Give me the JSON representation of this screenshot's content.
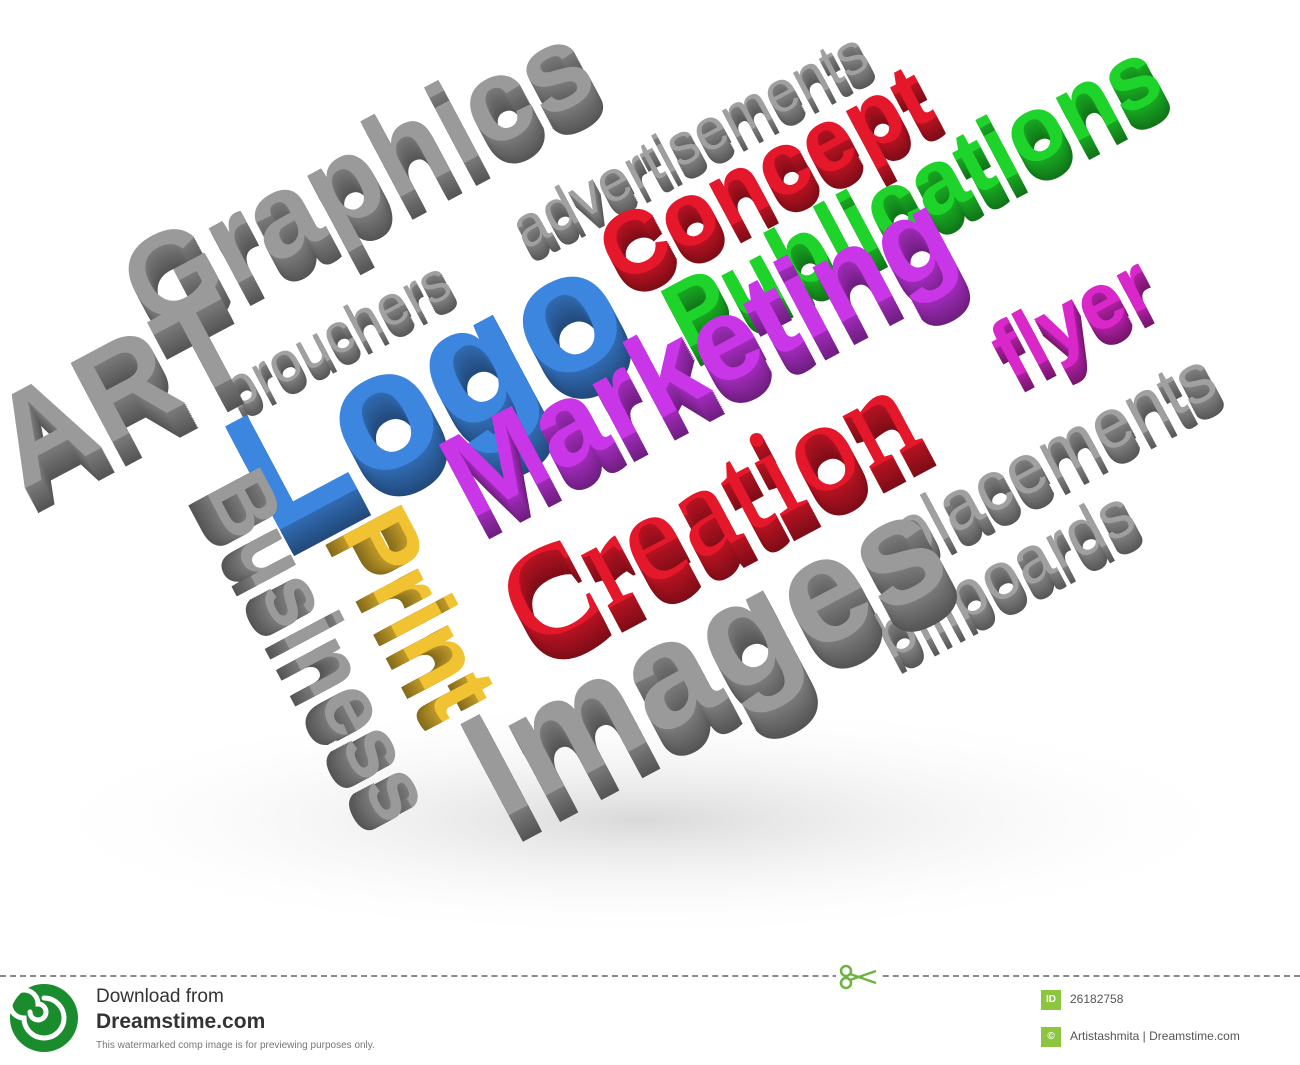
{
  "words": [
    {
      "key": "graphics",
      "text": "Graphics",
      "color": "#9a9a9a"
    },
    {
      "key": "advertisements",
      "text": "advertisements",
      "color": "#a0a0a0"
    },
    {
      "key": "concept",
      "text": "Concept",
      "color": "#e5172a"
    },
    {
      "key": "publications",
      "text": "Publications",
      "color": "#1ed42b"
    },
    {
      "key": "brouchers",
      "text": "brouchers",
      "color": "#a0a0a0"
    },
    {
      "key": "logo",
      "text": "Logo",
      "color": "#3d86e0"
    },
    {
      "key": "flyer",
      "text": "flyer",
      "color": "#d927c9"
    },
    {
      "key": "marketing",
      "text": "Marketing",
      "color": "#c936e8"
    },
    {
      "key": "art",
      "text": "ART",
      "color": "#9a9a9a"
    },
    {
      "key": "business",
      "text": "Business",
      "color": "#9a9a9a"
    },
    {
      "key": "print",
      "text": "Print",
      "color": "#f1c232"
    },
    {
      "key": "creation",
      "text": "Creation",
      "color": "#e5172a"
    },
    {
      "key": "placements",
      "text": "placements",
      "color": "#a0a0a0"
    },
    {
      "key": "billboards",
      "text": "billboards",
      "color": "#a0a0a0"
    },
    {
      "key": "images",
      "text": "Images",
      "color": "#9a9a9a"
    }
  ],
  "footer": {
    "download_from": "Download from",
    "site": "Dreamstime.com",
    "note": "This watermarked comp image is for previewing purposes only.",
    "id_badge": "ID",
    "image_id": "26182758",
    "author": "Artistashmita | Dreamstime.com"
  },
  "colors": {
    "gray_front": "#9a9a9a",
    "brand_green": "#1a8c2e",
    "badge_green": "#8cc63f"
  }
}
